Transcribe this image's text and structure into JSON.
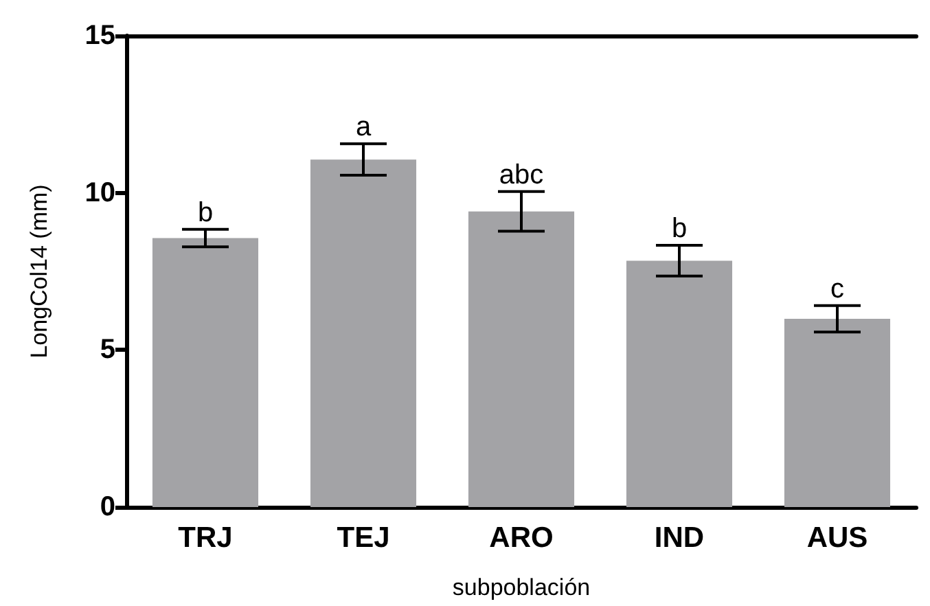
{
  "chart_data": {
    "type": "bar",
    "xlabel": "subpoblación",
    "ylabel": "LongCol14 (mm)",
    "categories": [
      "TRJ",
      "TEJ",
      "ARO",
      "IND",
      "AUS"
    ],
    "values": [
      8.56,
      11.06,
      9.41,
      7.84,
      5.99
    ],
    "errors": [
      0.28,
      0.5,
      0.63,
      0.49,
      0.42
    ],
    "color": "#a3a3a6",
    "ylim": [
      0,
      15
    ],
    "yticks": [
      0,
      5,
      10,
      15
    ],
    "grid": false,
    "annotations": [
      "b",
      "a",
      "abc",
      "b",
      "c"
    ]
  }
}
